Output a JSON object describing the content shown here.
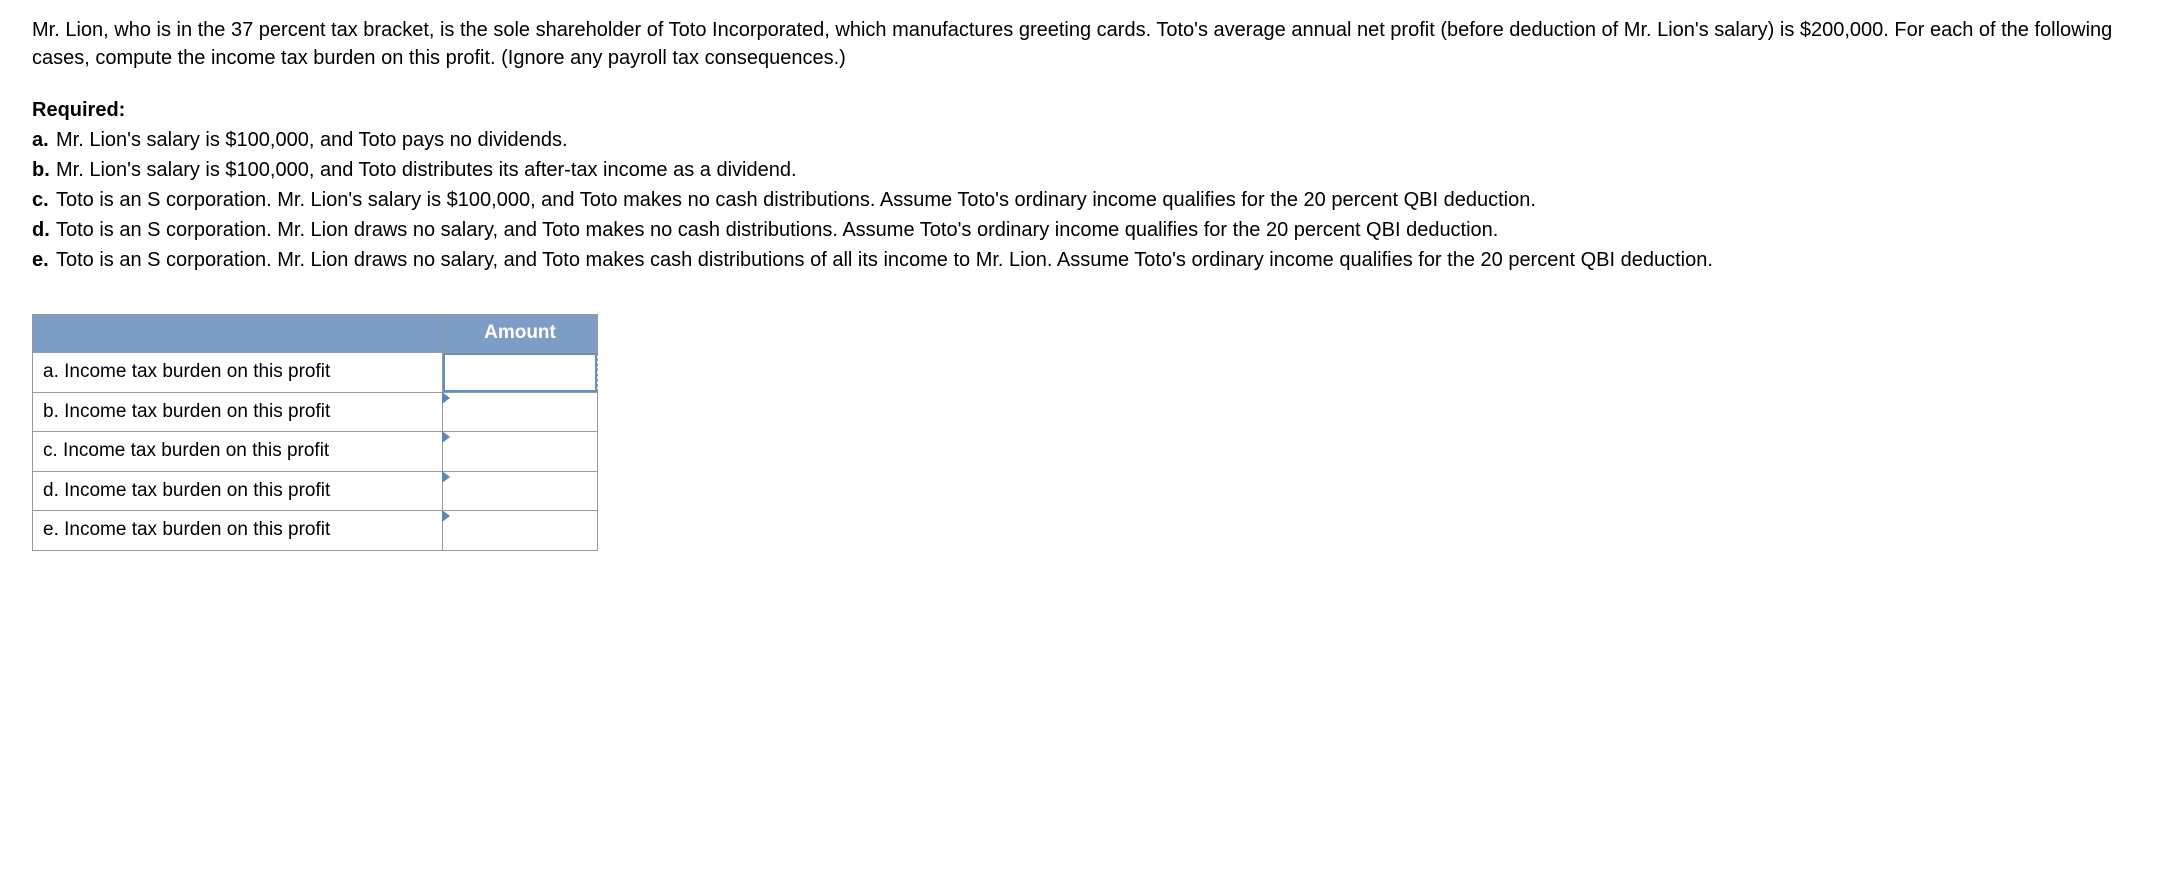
{
  "problem": {
    "intro": "Mr. Lion, who is in the 37 percent tax bracket, is the sole shareholder of Toto Incorporated, which manufactures greeting cards. Toto's average annual net profit (before deduction of Mr. Lion's salary) is $200,000. For each of the following cases, compute the income tax burden on this profit. (Ignore any payroll tax consequences.)"
  },
  "required": {
    "heading": "Required:",
    "items": [
      {
        "marker": "a.",
        "text": "Mr. Lion's salary is $100,000, and Toto pays no dividends."
      },
      {
        "marker": "b.",
        "text": "Mr. Lion's salary is $100,000, and Toto distributes its after-tax income as a dividend."
      },
      {
        "marker": "c.",
        "text": "Toto is an S corporation. Mr. Lion's salary is $100,000, and Toto makes no cash distributions. Assume Toto's ordinary income qualifies for the 20 percent QBI deduction."
      },
      {
        "marker": "d.",
        "text": "Toto is an S corporation. Mr. Lion draws no salary, and Toto makes no cash distributions. Assume Toto's ordinary income qualifies for the 20 percent QBI deduction."
      },
      {
        "marker": "e.",
        "text": "Toto is an S corporation. Mr. Lion draws no salary, and Toto makes cash distributions of all its income to Mr. Lion. Assume Toto's ordinary income qualifies for the 20 percent QBI deduction."
      }
    ]
  },
  "table": {
    "headers": {
      "label": "",
      "amount": "Amount"
    },
    "rows": [
      {
        "label": "a. Income tax burden on this profit",
        "value": ""
      },
      {
        "label": "b. Income tax burden on this profit",
        "value": ""
      },
      {
        "label": "c. Income tax burden on this profit",
        "value": ""
      },
      {
        "label": "d. Income tax burden on this profit",
        "value": ""
      },
      {
        "label": "e. Income tax burden on this profit",
        "value": ""
      }
    ]
  },
  "colors": {
    "header_bg": "#7b9dc6",
    "header_text": "#ffffff",
    "border": "#999999",
    "body_text": "#000000",
    "background": "#ffffff",
    "accent": "#5a85b5"
  }
}
